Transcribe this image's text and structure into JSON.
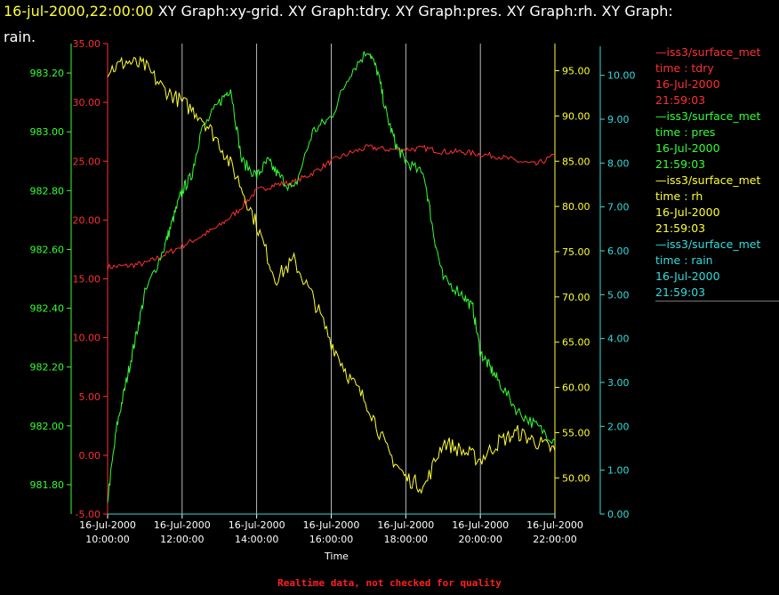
{
  "title": {
    "timestamp": "16-jul-2000,22:00:00",
    "rest": "  XY Graph:xy-grid.  XY Graph:tdry.  XY Graph:pres.  XY Graph:rh.  XY Graph:",
    "line2": "rain."
  },
  "footer": "Realtime data, not checked for quality",
  "colors": {
    "tdry": "#ff3030",
    "pres": "#33ff33",
    "rh": "#ffff33",
    "rain": "#33dddd",
    "grid": "#ffffff",
    "text": "#ffffff"
  },
  "legend": [
    {
      "series": "tdry",
      "color": "#ff3030",
      "lines": [
        "—iss3/surface_met",
        "time : tdry",
        "16-Jul-2000",
        "21:59:03"
      ]
    },
    {
      "series": "pres",
      "color": "#33ff33",
      "lines": [
        "—iss3/surface_met",
        "time : pres",
        "16-Jul-2000",
        "21:59:03"
      ]
    },
    {
      "series": "rh",
      "color": "#ffff33",
      "lines": [
        "—iss3/surface_met",
        "time : rh",
        "16-Jul-2000",
        "21:59:03"
      ]
    },
    {
      "series": "rain",
      "color": "#33dddd",
      "lines": [
        "—iss3/surface_met",
        "time : rain",
        "16-Jul-2000",
        "21:59:03"
      ]
    }
  ],
  "chart_data": {
    "type": "line",
    "xlabel": "Time",
    "x_ticks": [
      [
        "16-Jul-2000",
        "10:00:00"
      ],
      [
        "16-Jul-2000",
        "12:00:00"
      ],
      [
        "16-Jul-2000",
        "14:00:00"
      ],
      [
        "16-Jul-2000",
        "16:00:00"
      ],
      [
        "16-Jul-2000",
        "18:00:00"
      ],
      [
        "16-Jul-2000",
        "20:00:00"
      ],
      [
        "16-Jul-2000",
        "22:00:00"
      ]
    ],
    "xlim": [
      10,
      22
    ],
    "grid": true,
    "legend_placement": "right",
    "axes": {
      "tdry": {
        "ylim": [
          -5,
          35
        ],
        "ticks": [
          "-5.00",
          "0.00",
          "5.00",
          "10.00",
          "15.00",
          "20.00",
          "25.00",
          "30.00",
          "35.00"
        ]
      },
      "pres": {
        "ylim": [
          981.7,
          983.3
        ],
        "ticks": [
          "981.80",
          "982.00",
          "982.20",
          "982.40",
          "982.60",
          "982.80",
          "983.00",
          "983.20"
        ]
      },
      "rh": {
        "ylim": [
          46,
          98
        ],
        "ticks": [
          "50.00",
          "55.00",
          "60.00",
          "65.00",
          "70.00",
          "75.00",
          "80.00",
          "85.00",
          "90.00",
          "95.00"
        ]
      },
      "rain": {
        "ylim": [
          0,
          10.5
        ],
        "ticks": [
          "0.00",
          "1.00",
          "2.00",
          "3.00",
          "4.00",
          "5.00",
          "6.00",
          "7.00",
          "8.00",
          "9.00",
          "10.00"
        ]
      }
    },
    "series": [
      {
        "name": "tdry",
        "axis": "tdry",
        "x": [
          10,
          10.5,
          11,
          11.5,
          12,
          12.5,
          13,
          13.5,
          14,
          14.5,
          15,
          15.5,
          16,
          16.5,
          17,
          17.5,
          18,
          18.5,
          19,
          19.5,
          20,
          20.5,
          21,
          21.5,
          22
        ],
        "y": [
          16,
          16.1,
          16.3,
          17,
          17.8,
          18.6,
          19.5,
          20.8,
          22.5,
          23,
          23.2,
          24,
          25,
          25.7,
          26.2,
          26,
          26,
          26.1,
          25.8,
          25.8,
          25.6,
          25.4,
          25,
          24.7,
          25.5
        ]
      },
      {
        "name": "pres",
        "axis": "pres",
        "x": [
          10,
          10.25,
          10.5,
          10.75,
          11,
          11.5,
          11.75,
          12,
          12.25,
          12.5,
          13,
          13.3,
          13.6,
          14,
          14.3,
          14.6,
          15,
          15.5,
          16,
          16.5,
          17,
          17.25,
          17.5,
          17.75,
          18,
          18.5,
          18.75,
          19,
          19.5,
          19.8,
          20,
          20.25,
          20.5,
          21,
          21.5,
          22
        ],
        "y": [
          981.75,
          982.0,
          982.15,
          982.3,
          982.45,
          982.6,
          982.7,
          982.8,
          982.85,
          983.0,
          983.1,
          983.15,
          982.9,
          982.85,
          982.9,
          982.85,
          982.8,
          983.0,
          983.05,
          983.2,
          983.28,
          983.2,
          983.05,
          982.95,
          982.9,
          982.85,
          982.65,
          982.5,
          982.45,
          982.4,
          982.25,
          982.2,
          982.15,
          982.05,
          982.0,
          981.95
        ]
      },
      {
        "name": "rh",
        "axis": "rh",
        "x": [
          10,
          10.5,
          11,
          11.5,
          12,
          12.5,
          13,
          13.5,
          14,
          14.5,
          15,
          15.5,
          16,
          16.5,
          17,
          17.5,
          18,
          18.5,
          19,
          19.5,
          20,
          20.5,
          21,
          21.5,
          22
        ],
        "y": [
          95,
          96,
          95.5,
          93,
          91.5,
          90,
          87,
          83,
          78,
          72,
          74,
          70,
          65,
          61,
          58,
          53,
          50,
          49,
          54,
          53,
          52,
          54,
          55,
          54,
          53
        ]
      },
      {
        "name": "rain",
        "axis": "rain",
        "x": [
          10,
          22
        ],
        "y": [
          0,
          0
        ]
      }
    ]
  }
}
